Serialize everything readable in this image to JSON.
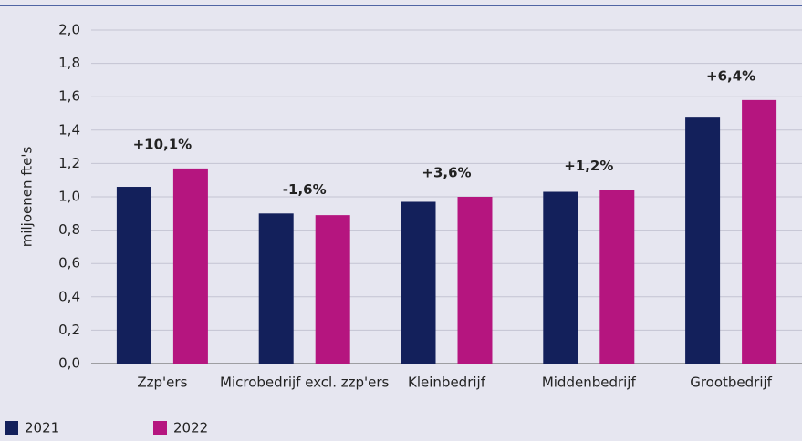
{
  "chart_data": {
    "type": "bar",
    "y_label": "miljoenen fte's",
    "categories": [
      "Zzp'ers",
      "Microbedrijf excl. zzp'ers",
      "Kleinbedrijf",
      "Middenbedrijf",
      "Grootbedrijf"
    ],
    "series": [
      {
        "name": "2021",
        "color": "#13205b",
        "values": [
          1.06,
          0.9,
          0.97,
          1.03,
          1.48
        ]
      },
      {
        "name": "2022",
        "color": "#b5157f",
        "values": [
          1.17,
          0.89,
          1.0,
          1.04,
          1.58
        ]
      }
    ],
    "annotations": [
      "+10,1%",
      "-1,6%",
      "+3,6%",
      "+1,2%",
      "+6,4%"
    ],
    "ylim": [
      0,
      2
    ],
    "yticks": [
      {
        "value": 0,
        "label": "0,0"
      },
      {
        "value": 0.2,
        "label": "0,2"
      },
      {
        "value": 0.4,
        "label": "0,4"
      },
      {
        "value": 0.6,
        "label": "0,6"
      },
      {
        "value": 0.8,
        "label": "0,8"
      },
      {
        "value": 1.0,
        "label": "1,0"
      },
      {
        "value": 1.2,
        "label": "1,2"
      },
      {
        "value": 1.4,
        "label": "1,4"
      },
      {
        "value": 1.6,
        "label": "1,6"
      },
      {
        "value": 1.8,
        "label": "1,8"
      },
      {
        "value": 2.0,
        "label": "2,0"
      }
    ],
    "grid": true
  }
}
